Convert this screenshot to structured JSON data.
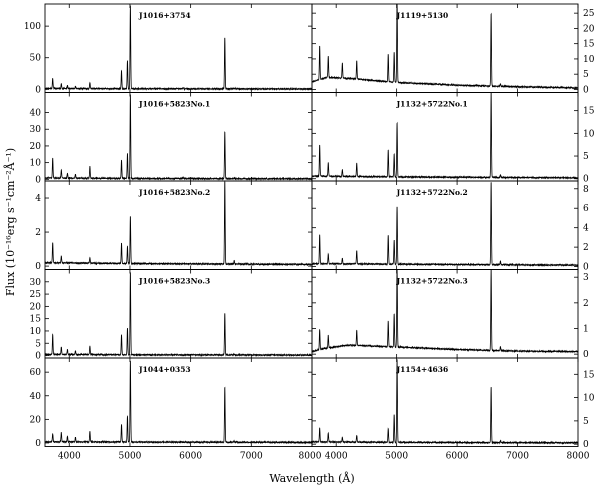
{
  "chart_data": {
    "type": "line",
    "xlabel": "Wavelength (Å)",
    "ylabel": "Flux (10⁻¹⁶erg s⁻¹cm⁻²Å⁻¹)",
    "xlim": [
      3600,
      8000
    ],
    "x_ticks": [
      4000,
      5000,
      6000,
      7000,
      8000
    ],
    "panels": [
      {
        "label": "J1016+3754",
        "col": 0,
        "row": 0,
        "ylim": [
          -5,
          135
        ],
        "y_ticks": [
          0,
          50,
          100
        ],
        "continuum": [
          [
            3600,
            1.5
          ],
          [
            4500,
            1.0
          ],
          [
            6000,
            0.8
          ],
          [
            8000,
            0.6
          ]
        ],
        "lines": [
          [
            3727,
            16
          ],
          [
            3869,
            8
          ],
          [
            3970,
            5
          ],
          [
            4102,
            4
          ],
          [
            4340,
            10
          ],
          [
            4861,
            28
          ],
          [
            4959,
            45
          ],
          [
            5007,
            133
          ],
          [
            5876,
            2
          ],
          [
            6563,
            82
          ],
          [
            6717,
            1
          ],
          [
            6731,
            1
          ]
        ]
      },
      {
        "label": "J1119+5130",
        "col": 1,
        "row": 0,
        "ylim": [
          -1,
          28
        ],
        "y_ticks": [
          0,
          5,
          10,
          15,
          20,
          25
        ],
        "continuum": [
          [
            3600,
            2.5
          ],
          [
            3850,
            4.0
          ],
          [
            4300,
            3.5
          ],
          [
            5000,
            2.3
          ],
          [
            6000,
            1.4
          ],
          [
            7000,
            0.9
          ],
          [
            8000,
            0.5
          ]
        ],
        "lines": [
          [
            3727,
            11
          ],
          [
            3869,
            7
          ],
          [
            4102,
            5
          ],
          [
            4340,
            6
          ],
          [
            4861,
            9
          ],
          [
            4959,
            10
          ],
          [
            5007,
            28
          ],
          [
            6563,
            24
          ],
          [
            6717,
            0.8
          ]
        ]
      },
      {
        "label": "J1016+5823No.1",
        "col": 0,
        "row": 1,
        "ylim": [
          -1,
          52
        ],
        "y_ticks": [
          0,
          10,
          20,
          30,
          40
        ],
        "continuum": [
          [
            3600,
            0.8
          ],
          [
            5000,
            0.5
          ],
          [
            8000,
            0.3
          ]
        ],
        "lines": [
          [
            3727,
            12
          ],
          [
            3869,
            5
          ],
          [
            3970,
            3
          ],
          [
            4102,
            2.5
          ],
          [
            4340,
            7
          ],
          [
            4861,
            11
          ],
          [
            4959,
            15
          ],
          [
            5007,
            51
          ],
          [
            5876,
            1
          ],
          [
            6563,
            28
          ],
          [
            6717,
            0.5
          ]
        ]
      },
      {
        "label": "J1132+5722No.1",
        "col": 1,
        "row": 1,
        "ylim": [
          -0.5,
          19
        ],
        "y_ticks": [
          0,
          5,
          10,
          15
        ],
        "continuum": [
          [
            3600,
            0.6
          ],
          [
            5000,
            0.4
          ],
          [
            8000,
            0.2
          ]
        ],
        "lines": [
          [
            3727,
            7
          ],
          [
            3869,
            3
          ],
          [
            4102,
            1.5
          ],
          [
            4340,
            3
          ],
          [
            4861,
            6
          ],
          [
            4959,
            5
          ],
          [
            5007,
            12
          ],
          [
            6563,
            19
          ],
          [
            6717,
            0.6
          ]
        ]
      },
      {
        "label": "J1016+5823No.2",
        "col": 0,
        "row": 2,
        "ylim": [
          -0.2,
          5.0
        ],
        "y_ticks": [
          0,
          2,
          4
        ],
        "continuum": [
          [
            3600,
            0.2
          ],
          [
            5000,
            0.15
          ],
          [
            8000,
            0.1
          ]
        ],
        "lines": [
          [
            3727,
            1.2
          ],
          [
            3869,
            0.4
          ],
          [
            4340,
            0.3
          ],
          [
            4861,
            1.2
          ],
          [
            4959,
            1.0
          ],
          [
            5007,
            2.8
          ],
          [
            6563,
            4.9
          ],
          [
            6717,
            0.2
          ]
        ]
      },
      {
        "label": "J1132+5722No.2",
        "col": 1,
        "row": 2,
        "ylim": [
          -0.3,
          8.8
        ],
        "y_ticks": [
          0,
          2,
          4,
          6,
          8
        ],
        "continuum": [
          [
            3600,
            0.3
          ],
          [
            5000,
            0.25
          ],
          [
            8000,
            0.15
          ]
        ],
        "lines": [
          [
            3727,
            3
          ],
          [
            3869,
            1
          ],
          [
            4102,
            0.6
          ],
          [
            4340,
            1.4
          ],
          [
            4861,
            3
          ],
          [
            4959,
            2.5
          ],
          [
            5007,
            6
          ],
          [
            6563,
            8.6
          ],
          [
            6717,
            0.4
          ]
        ]
      },
      {
        "label": "J1016+5823No.3",
        "col": 0,
        "row": 3,
        "ylim": [
          -1,
          35
        ],
        "y_ticks": [
          0,
          5,
          10,
          15,
          20,
          25,
          30
        ],
        "continuum": [
          [
            3600,
            0.5
          ],
          [
            5000,
            0.3
          ],
          [
            8000,
            0.2
          ]
        ],
        "lines": [
          [
            3727,
            8
          ],
          [
            3869,
            3
          ],
          [
            3970,
            2
          ],
          [
            4102,
            1.5
          ],
          [
            4340,
            3.5
          ],
          [
            4861,
            8
          ],
          [
            4959,
            11
          ],
          [
            5007,
            34
          ],
          [
            6563,
            17
          ],
          [
            6717,
            0.4
          ]
        ]
      },
      {
        "label": "J1132+5722No.3",
        "col": 1,
        "row": 3,
        "ylim": [
          -0.15,
          3.3
        ],
        "y_ticks": [
          0,
          1,
          2,
          3
        ],
        "continuum": [
          [
            3600,
            0.1
          ],
          [
            3800,
            0.22
          ],
          [
            4200,
            0.35
          ],
          [
            5000,
            0.28
          ],
          [
            6000,
            0.18
          ],
          [
            7000,
            0.12
          ],
          [
            8000,
            0.1
          ]
        ],
        "lines": [
          [
            3727,
            0.8
          ],
          [
            3869,
            0.5
          ],
          [
            4340,
            0.6
          ],
          [
            4861,
            1.0
          ],
          [
            4959,
            1.3
          ],
          [
            5007,
            3.2
          ],
          [
            6563,
            3.2
          ],
          [
            6717,
            0.15
          ]
        ]
      },
      {
        "label": "J1044+0353",
        "col": 0,
        "row": 4,
        "ylim": [
          -3,
          72
        ],
        "y_ticks": [
          0,
          20,
          40,
          60
        ],
        "continuum": [
          [
            3600,
            1.0
          ],
          [
            5000,
            0.8
          ],
          [
            8000,
            0.5
          ]
        ],
        "lines": [
          [
            3727,
            7
          ],
          [
            3869,
            8
          ],
          [
            3970,
            5
          ],
          [
            4102,
            4
          ],
          [
            4340,
            9
          ],
          [
            4861,
            15
          ],
          [
            4959,
            22
          ],
          [
            5007,
            70
          ],
          [
            6563,
            47
          ],
          [
            6717,
            1
          ]
        ]
      },
      {
        "label": "J1154+4636",
        "col": 1,
        "row": 4,
        "ylim": [
          -0.5,
          18.5
        ],
        "y_ticks": [
          0,
          5,
          10,
          15
        ],
        "continuum": [
          [
            3600,
            0.5
          ],
          [
            5000,
            0.4
          ],
          [
            8000,
            0.3
          ]
        ],
        "lines": [
          [
            3727,
            3
          ],
          [
            3869,
            2
          ],
          [
            4102,
            1
          ],
          [
            4340,
            1.5
          ],
          [
            4861,
            3
          ],
          [
            4959,
            6
          ],
          [
            5007,
            18
          ],
          [
            6563,
            12
          ],
          [
            6717,
            0.4
          ]
        ]
      }
    ]
  }
}
